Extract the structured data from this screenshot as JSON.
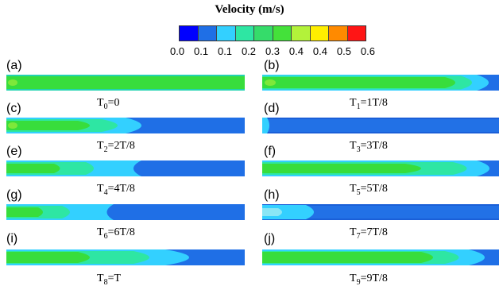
{
  "legend": {
    "title": "Velocity (m/s)",
    "colors": [
      "#0000ff",
      "#1f6fe6",
      "#33d0ff",
      "#2ee6a3",
      "#35dc6a",
      "#44e13a",
      "#b3f23a",
      "#ffee00",
      "#ff8a00",
      "#ff1515"
    ],
    "ticks": [
      "0.0",
      "0.1",
      "0.1",
      "0.2",
      "0.3",
      "0.4",
      "0.4",
      "0.5",
      "0.6"
    ]
  },
  "panels": [
    {
      "label": "(a)",
      "time_sym": "T",
      "time_sub": "0",
      "time_rhs": "=0"
    },
    {
      "label": "(b)",
      "time_sym": "T",
      "time_sub": "1",
      "time_rhs": "=1T/8"
    },
    {
      "label": "(c)",
      "time_sym": "T",
      "time_sub": "2",
      "time_rhs": "=2T/8"
    },
    {
      "label": "(d)",
      "time_sym": "T",
      "time_sub": "3",
      "time_rhs": "=3T/8"
    },
    {
      "label": "(e)",
      "time_sym": "T",
      "time_sub": "4",
      "time_rhs": "=4T/8"
    },
    {
      "label": "(f)",
      "time_sym": "T",
      "time_sub": "5",
      "time_rhs": "=5T/8"
    },
    {
      "label": "(g)",
      "time_sym": "T",
      "time_sub": "6",
      "time_rhs": "=6T/8"
    },
    {
      "label": "(h)",
      "time_sym": "T",
      "time_sub": "7",
      "time_rhs": "=7T/8"
    },
    {
      "label": "(i)",
      "time_sym": "T",
      "time_sub": "8",
      "time_rhs": "=T"
    },
    {
      "label": "(j)",
      "time_sym": "T",
      "time_sub": "9",
      "time_rhs": "=9T/8"
    }
  ]
}
